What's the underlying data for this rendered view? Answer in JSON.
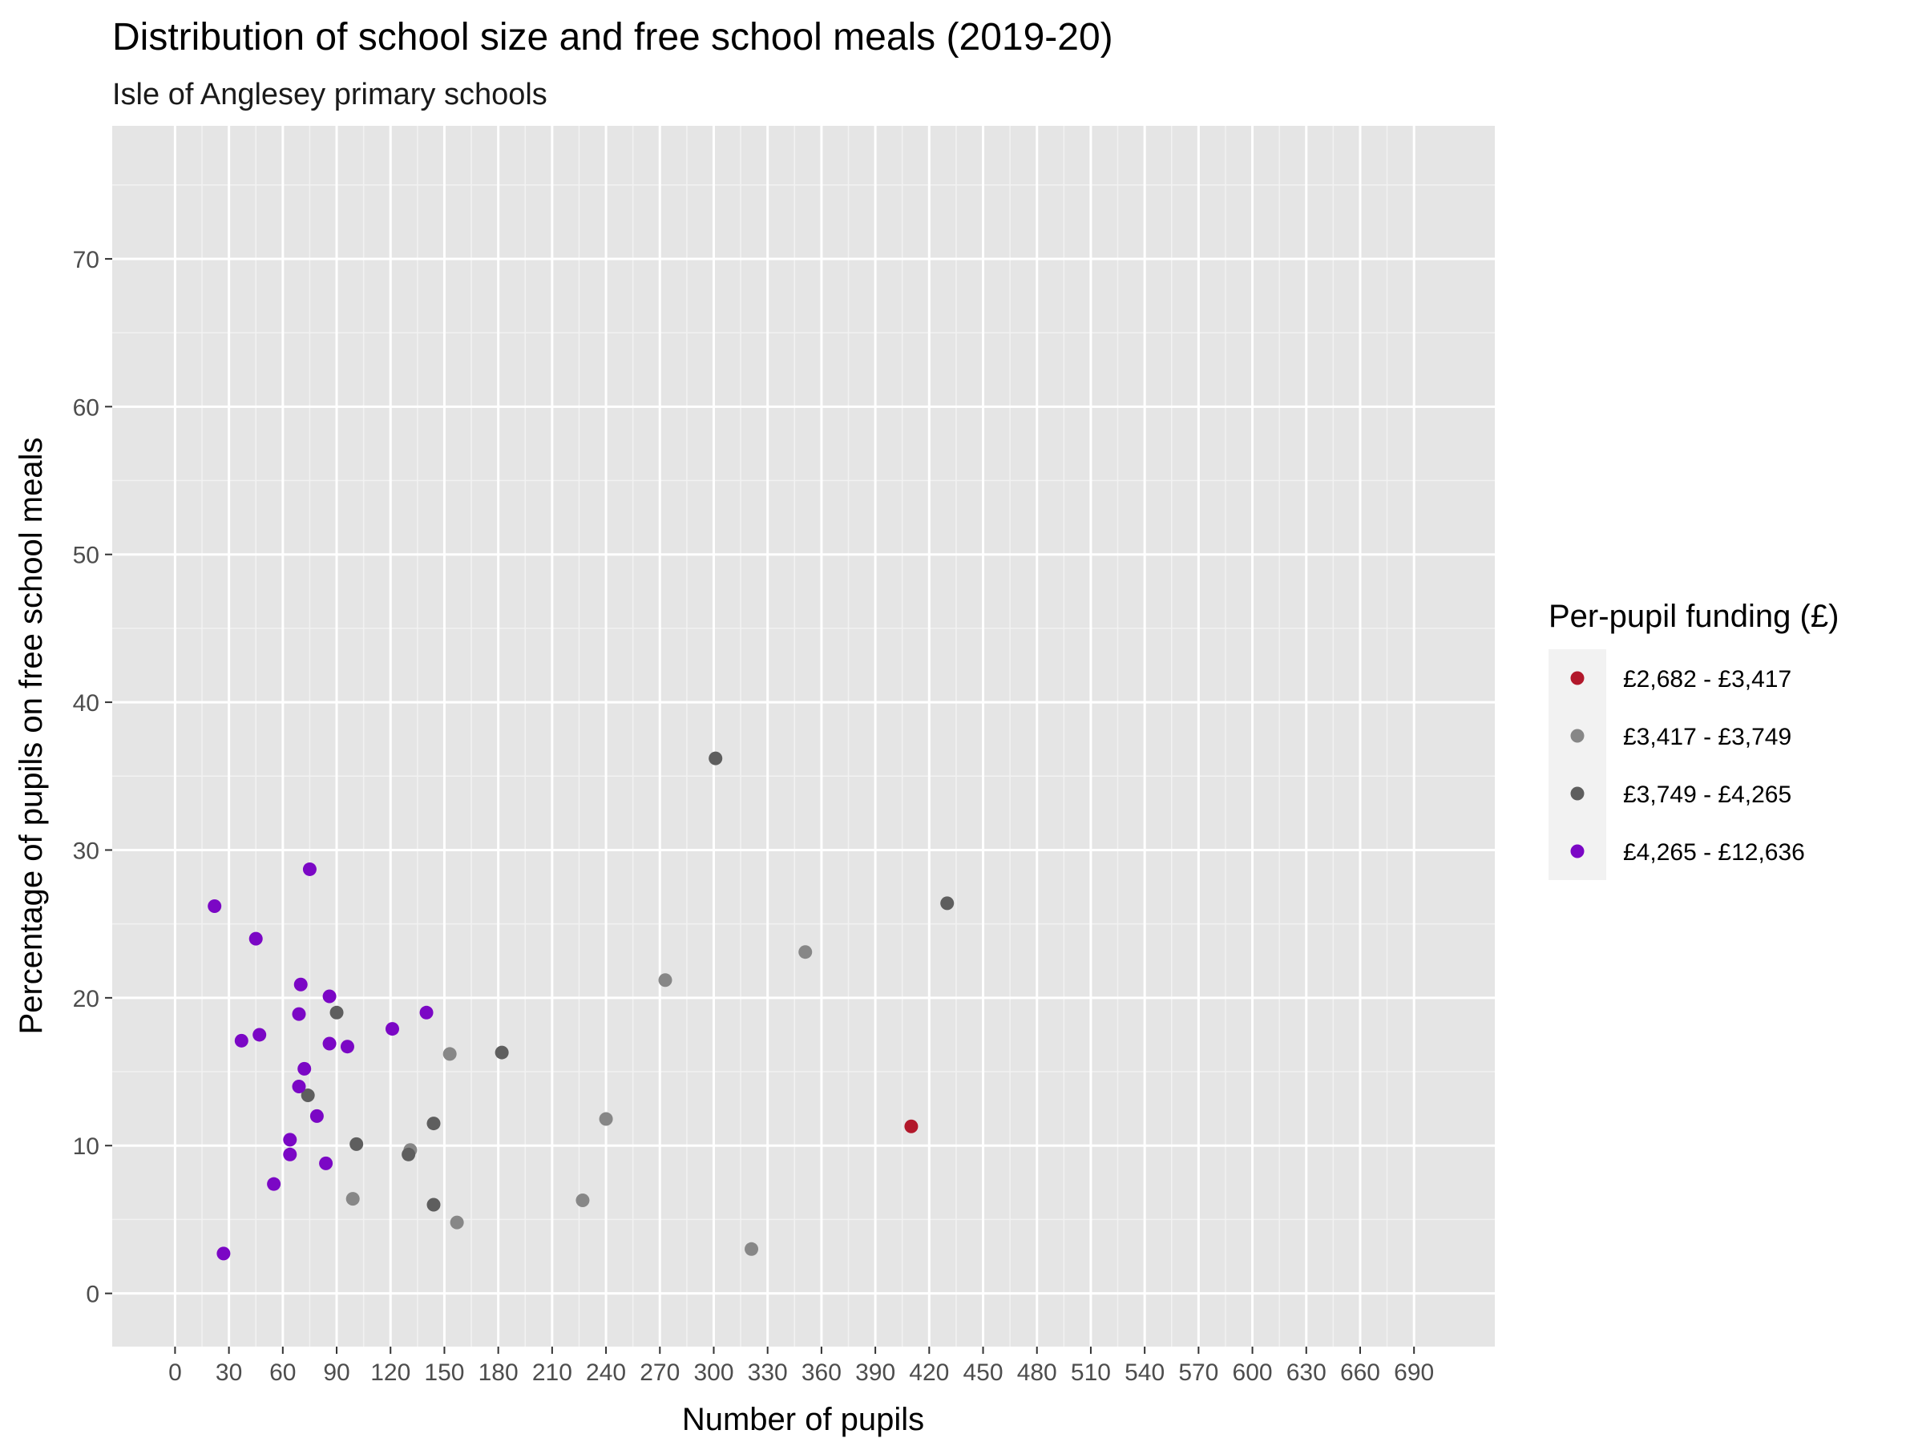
{
  "chart_data": {
    "type": "scatter",
    "title": "Distribution of school size and free school meals (2019-20)",
    "subtitle": "Isle of Anglesey primary schools",
    "xlabel": "Number of pupils",
    "ylabel": "Percentage of pupils on free school meals",
    "xlim": [
      -35,
      735
    ],
    "ylim": [
      -3.6,
      79
    ],
    "x_ticks": [
      0,
      30,
      60,
      90,
      120,
      150,
      180,
      210,
      240,
      270,
      300,
      330,
      360,
      390,
      420,
      450,
      480,
      510,
      540,
      570,
      600,
      630,
      660,
      690
    ],
    "y_ticks": [
      0,
      10,
      20,
      30,
      40,
      50,
      60,
      70
    ],
    "grid": true,
    "background": "#e5e5e5",
    "legend": {
      "title": "Per-pupil funding (£)",
      "position": "right",
      "items": [
        {
          "label": "£2,682 - £3,417",
          "color": "#b2182b"
        },
        {
          "label": "£3,417 - £3,749",
          "color": "#878787"
        },
        {
          "label": "£3,749 - £4,265",
          "color": "#5e5e5e"
        },
        {
          "label": "£4,265 - £12,636",
          "color": "#7b07c5"
        }
      ]
    },
    "series": [
      {
        "name": "£2,682 - £3,417",
        "color": "#b2182b",
        "points": [
          [
            410,
            11.3
          ]
        ]
      },
      {
        "name": "£3,417 - £3,749",
        "color": "#878787",
        "points": [
          [
            99,
            6.4
          ],
          [
            131,
            9.7
          ],
          [
            153,
            16.2
          ],
          [
            157,
            4.8
          ],
          [
            227,
            6.3
          ],
          [
            240,
            11.8
          ],
          [
            273,
            21.2
          ],
          [
            321,
            3.0
          ],
          [
            351,
            23.1
          ]
        ]
      },
      {
        "name": "£3,749 - £4,265",
        "color": "#5e5e5e",
        "points": [
          [
            74,
            13.4
          ],
          [
            90,
            19.0
          ],
          [
            101,
            10.1
          ],
          [
            130,
            9.4
          ],
          [
            144,
            6.0
          ],
          [
            144,
            11.5
          ],
          [
            182,
            16.3
          ],
          [
            301,
            36.2
          ],
          [
            430,
            26.4
          ]
        ]
      },
      {
        "name": "£4,265 - £12,636",
        "color": "#7b07c5",
        "points": [
          [
            22,
            26.2
          ],
          [
            27,
            2.7
          ],
          [
            37,
            17.1
          ],
          [
            45,
            24.0
          ],
          [
            47,
            17.5
          ],
          [
            55,
            7.4
          ],
          [
            64,
            10.4
          ],
          [
            64,
            9.4
          ],
          [
            69,
            18.9
          ],
          [
            69,
            14.0
          ],
          [
            70,
            20.9
          ],
          [
            72,
            15.2
          ],
          [
            75,
            28.7
          ],
          [
            79,
            12.0
          ],
          [
            84,
            8.8
          ],
          [
            86,
            20.1
          ],
          [
            86,
            16.9
          ],
          [
            96,
            16.7
          ],
          [
            121,
            17.9
          ],
          [
            140,
            19.0
          ]
        ]
      }
    ]
  }
}
